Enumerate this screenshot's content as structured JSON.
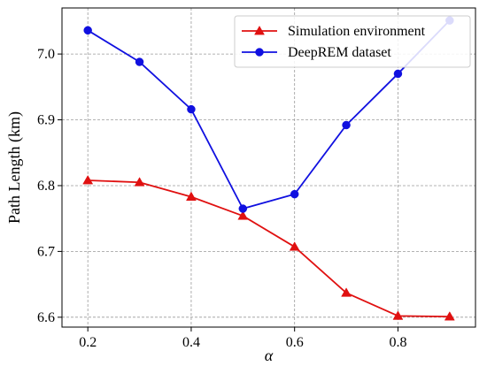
{
  "chart_data": {
    "type": "line",
    "title": "",
    "xlabel": "α",
    "ylabel": "Path Length (km)",
    "x": [
      0.2,
      0.3,
      0.4,
      0.5,
      0.6,
      0.7,
      0.8,
      0.9
    ],
    "xlim": [
      0.15,
      0.95
    ],
    "ylim": [
      6.585,
      7.07
    ],
    "xticks": [
      "0.2",
      "0.4",
      "0.6",
      "0.8"
    ],
    "yticks": [
      "6.6",
      "6.7",
      "6.8",
      "6.9",
      "7.0"
    ],
    "grid": true,
    "legend_position": "top-right",
    "series": [
      {
        "name": "Simulation environment",
        "color": "#e01010",
        "marker": "triangle",
        "values": [
          6.808,
          6.805,
          6.783,
          6.754,
          6.707,
          6.637,
          6.602,
          6.601
        ]
      },
      {
        "name": "DeepREM dataset",
        "color": "#1010e0",
        "marker": "circle",
        "values": [
          7.036,
          6.988,
          6.916,
          6.765,
          6.787,
          6.892,
          6.97,
          7.051
        ]
      }
    ]
  }
}
